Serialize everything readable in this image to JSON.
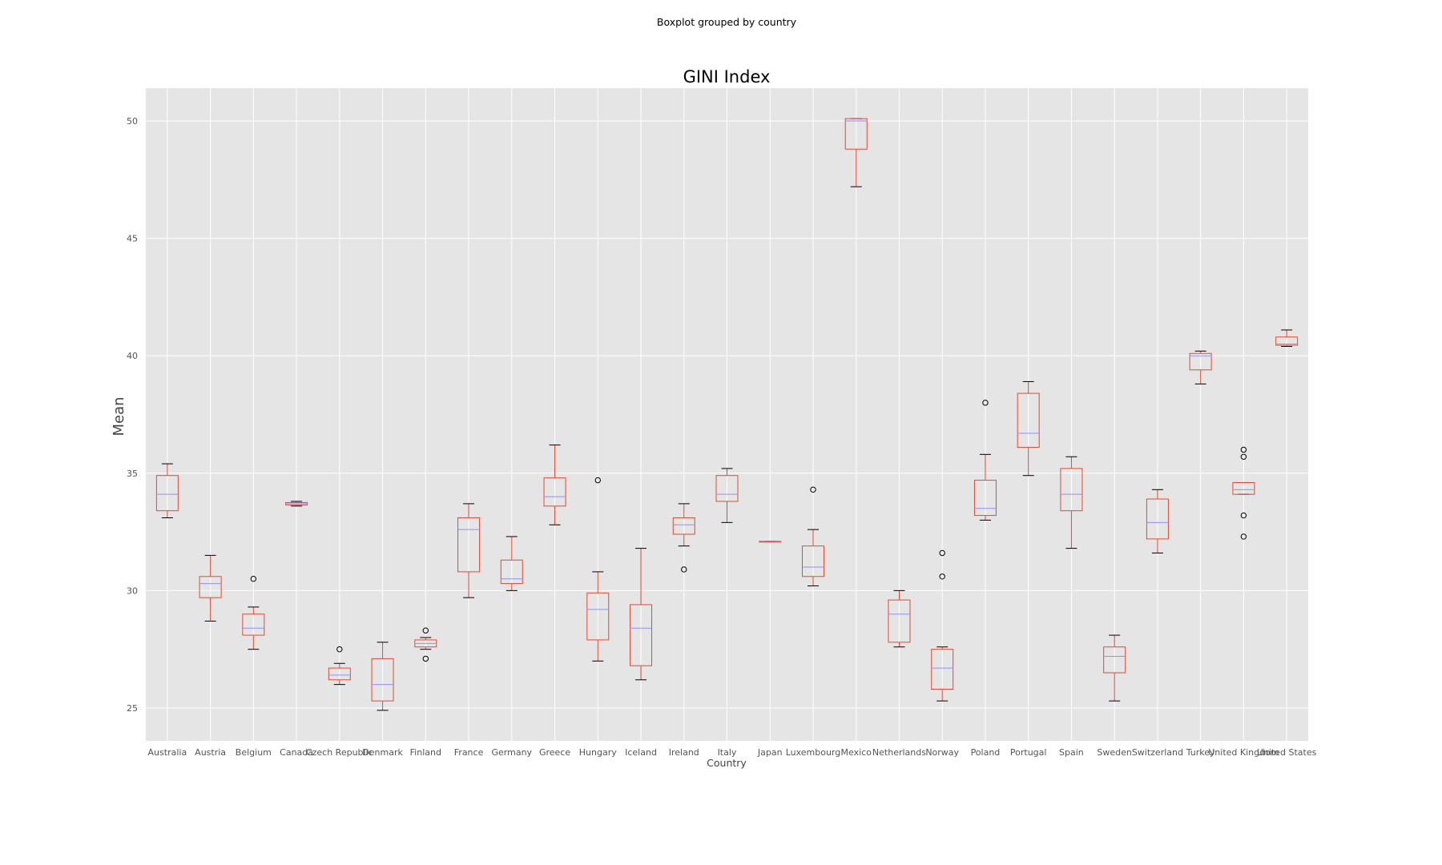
{
  "chart_data": {
    "type": "boxplot",
    "suptitle": "Boxplot grouped by country",
    "title": "GINI Index",
    "xlabel": "Country",
    "ylabel": "Mean",
    "ylim": [
      23.6,
      51.4
    ],
    "yticks": [
      25,
      30,
      35,
      40,
      45,
      50
    ],
    "grid": true,
    "colors": {
      "plot_background": "#e5e5e5",
      "grid": "#ffffff",
      "box": "#e24a33",
      "median": "#8f8fff",
      "whisker_cap": "#000000",
      "flier": "#000000"
    },
    "boxes": [
      {
        "category": "Australia",
        "whislo": 33.1,
        "q1": 33.4,
        "med": 34.1,
        "q3": 34.9,
        "whishi": 35.4,
        "fliers": []
      },
      {
        "category": "Austria",
        "whislo": 28.7,
        "q1": 29.7,
        "med": 30.3,
        "q3": 30.6,
        "whishi": 31.5,
        "fliers": []
      },
      {
        "category": "Belgium",
        "whislo": 27.5,
        "q1": 28.1,
        "med": 28.4,
        "q3": 29.0,
        "whishi": 29.3,
        "fliers": [
          30.5
        ]
      },
      {
        "category": "Canada",
        "whislo": 33.6,
        "q1": 33.65,
        "med": 33.7,
        "q3": 33.75,
        "whishi": 33.8,
        "fliers": []
      },
      {
        "category": "Czech Republic",
        "whislo": 26.0,
        "q1": 26.2,
        "med": 26.4,
        "q3": 26.7,
        "whishi": 26.9,
        "fliers": [
          27.5
        ]
      },
      {
        "category": "Denmark",
        "whislo": 24.9,
        "q1": 25.3,
        "med": 26.0,
        "q3": 27.1,
        "whishi": 27.8,
        "fliers": []
      },
      {
        "category": "Finland",
        "whislo": 27.5,
        "q1": 27.6,
        "med": 27.75,
        "q3": 27.9,
        "whishi": 28.0,
        "fliers": [
          28.3,
          27.1
        ]
      },
      {
        "category": "France",
        "whislo": 29.7,
        "q1": 30.8,
        "med": 32.6,
        "q3": 33.1,
        "whishi": 33.7,
        "fliers": []
      },
      {
        "category": "Germany",
        "whislo": 30.0,
        "q1": 30.3,
        "med": 30.5,
        "q3": 31.3,
        "whishi": 32.3,
        "fliers": []
      },
      {
        "category": "Greece",
        "whislo": 32.8,
        "q1": 33.6,
        "med": 34.0,
        "q3": 34.8,
        "whishi": 36.2,
        "fliers": []
      },
      {
        "category": "Hungary",
        "whislo": 27.0,
        "q1": 27.9,
        "med": 29.2,
        "q3": 29.9,
        "whishi": 30.8,
        "fliers": [
          34.7
        ]
      },
      {
        "category": "Iceland",
        "whislo": 26.2,
        "q1": 26.8,
        "med": 28.4,
        "q3": 29.4,
        "whishi": 31.8,
        "fliers": []
      },
      {
        "category": "Ireland",
        "whislo": 31.9,
        "q1": 32.4,
        "med": 32.8,
        "q3": 33.1,
        "whishi": 33.7,
        "fliers": [
          30.9
        ]
      },
      {
        "category": "Italy",
        "whislo": 32.9,
        "q1": 33.8,
        "med": 34.1,
        "q3": 34.9,
        "whishi": 35.2,
        "fliers": []
      },
      {
        "category": "Japan",
        "whislo": 32.1,
        "q1": 32.1,
        "med": 32.1,
        "q3": 32.1,
        "whishi": 32.1,
        "fliers": []
      },
      {
        "category": "Luxembourg",
        "whislo": 30.2,
        "q1": 30.6,
        "med": 31.0,
        "q3": 31.9,
        "whishi": 32.6,
        "fliers": [
          34.3
        ]
      },
      {
        "category": "Mexico",
        "whislo": 47.2,
        "q1": 48.8,
        "med": 50.0,
        "q3": 50.1,
        "whishi": 50.1,
        "fliers": []
      },
      {
        "category": "Netherlands",
        "whislo": 27.6,
        "q1": 27.8,
        "med": 29.0,
        "q3": 29.6,
        "whishi": 30.0,
        "fliers": []
      },
      {
        "category": "Norway",
        "whislo": 25.3,
        "q1": 25.8,
        "med": 26.7,
        "q3": 27.5,
        "whishi": 27.6,
        "fliers": [
          31.6,
          30.6
        ]
      },
      {
        "category": "Poland",
        "whislo": 33.0,
        "q1": 33.2,
        "med": 33.5,
        "q3": 34.7,
        "whishi": 35.8,
        "fliers": [
          38.0
        ]
      },
      {
        "category": "Portugal",
        "whislo": 34.9,
        "q1": 36.1,
        "med": 36.7,
        "q3": 38.4,
        "whishi": 38.9,
        "fliers": []
      },
      {
        "category": "Spain",
        "whislo": 31.8,
        "q1": 33.4,
        "med": 34.1,
        "q3": 35.2,
        "whishi": 35.7,
        "fliers": []
      },
      {
        "category": "Sweden",
        "whislo": 25.3,
        "q1": 26.5,
        "med": 27.2,
        "q3": 27.6,
        "whishi": 28.1,
        "fliers": []
      },
      {
        "category": "Switzerland",
        "whislo": 31.6,
        "q1": 32.2,
        "med": 32.9,
        "q3": 33.9,
        "whishi": 34.3,
        "fliers": []
      },
      {
        "category": "Turkey",
        "whislo": 38.8,
        "q1": 39.4,
        "med": 40.0,
        "q3": 40.1,
        "whishi": 40.2,
        "fliers": []
      },
      {
        "category": "United Kingdom",
        "whislo": 34.1,
        "q1": 34.1,
        "med": 34.3,
        "q3": 34.6,
        "whishi": 34.6,
        "fliers": [
          36.0,
          35.7,
          33.2,
          32.3
        ]
      },
      {
        "category": "United States",
        "whislo": 40.4,
        "q1": 40.45,
        "med": 40.5,
        "q3": 40.8,
        "whishi": 41.1,
        "fliers": []
      }
    ]
  }
}
